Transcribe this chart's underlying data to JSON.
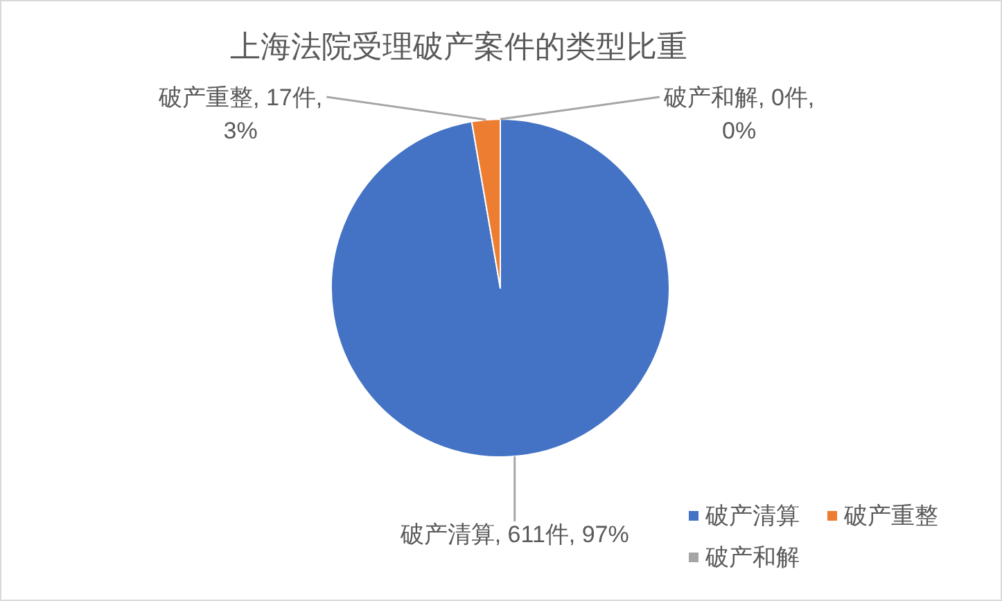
{
  "chart_data": {
    "type": "pie",
    "title": "上海法院受理破产案件的类型比重",
    "categories": [
      "破产清算",
      "破产重整",
      "破产和解"
    ],
    "values": [
      611,
      17,
      0
    ],
    "colors": [
      "#4472c4",
      "#ed7d31",
      "#a5a5a5"
    ],
    "value_labels": [
      "破产清算, 611件, 97%",
      "破产重整, 17件, 3%",
      "破产和解, 0件, 0%"
    ],
    "legend": "bottom right"
  }
}
